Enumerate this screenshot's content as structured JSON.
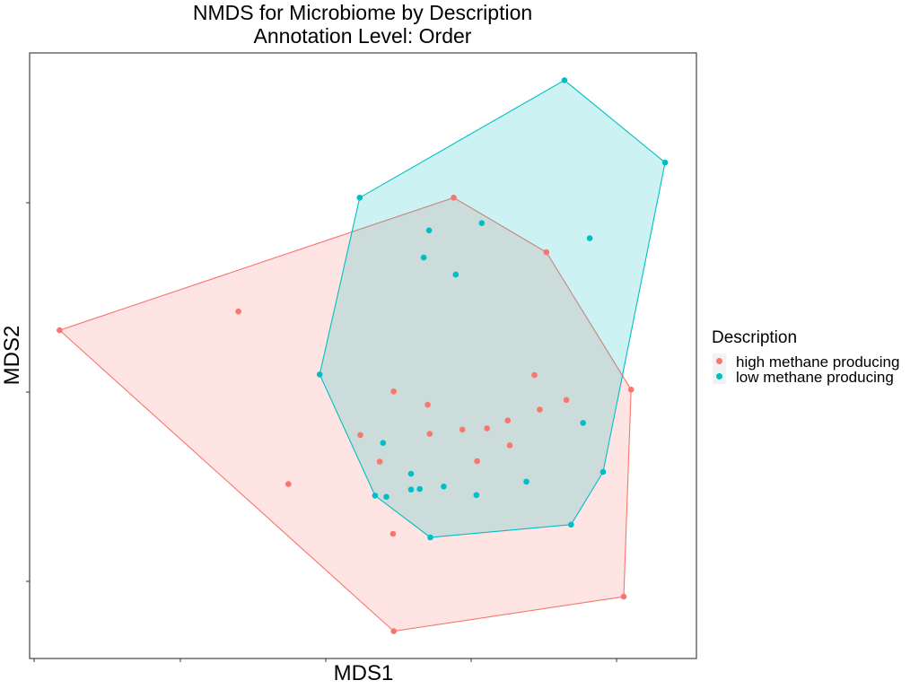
{
  "chart_data": {
    "type": "scatter",
    "title": "NMDS for Microbiome by Description",
    "subtitle": "Annotation Level: Order",
    "xlabel": "MDS1",
    "ylabel": "MDS2",
    "xlim": [
      0,
      1
    ],
    "ylim": [
      0,
      1
    ],
    "grid": false,
    "hull_fill_opacity": 0.2,
    "legend": {
      "title": "Description",
      "position": "right"
    },
    "series": [
      {
        "name": "high methane producing",
        "color": "#F8766D",
        "points": [
          [
            0.045,
            0.542
          ],
          [
            0.313,
            0.573
          ],
          [
            0.388,
            0.288
          ],
          [
            0.546,
            0.045
          ],
          [
            0.891,
            0.102
          ],
          [
            0.902,
            0.444
          ],
          [
            0.775,
            0.671
          ],
          [
            0.636,
            0.761
          ],
          [
            0.546,
            0.441
          ],
          [
            0.597,
            0.419
          ],
          [
            0.6,
            0.371
          ],
          [
            0.649,
            0.378
          ],
          [
            0.686,
            0.38
          ],
          [
            0.72,
            0.352
          ],
          [
            0.717,
            0.393
          ],
          [
            0.765,
            0.411
          ],
          [
            0.757,
            0.468
          ],
          [
            0.805,
            0.427
          ],
          [
            0.496,
            0.369
          ],
          [
            0.525,
            0.325
          ],
          [
            0.671,
            0.326
          ],
          [
            0.545,
            0.206
          ]
        ]
      },
      {
        "name": "low methane producing",
        "color": "#00BFC4",
        "points": [
          [
            0.802,
            0.955
          ],
          [
            0.953,
            0.819
          ],
          [
            0.495,
            0.761
          ],
          [
            0.678,
            0.719
          ],
          [
            0.599,
            0.707
          ],
          [
            0.84,
            0.694
          ],
          [
            0.591,
            0.662
          ],
          [
            0.639,
            0.634
          ],
          [
            0.435,
            0.469
          ],
          [
            0.53,
            0.356
          ],
          [
            0.572,
            0.305
          ],
          [
            0.621,
            0.284
          ],
          [
            0.585,
            0.28
          ],
          [
            0.745,
            0.292
          ],
          [
            0.86,
            0.308
          ],
          [
            0.83,
            0.389
          ],
          [
            0.535,
            0.267
          ],
          [
            0.572,
            0.279
          ],
          [
            0.518,
            0.269
          ],
          [
            0.601,
            0.2
          ],
          [
            0.67,
            0.27
          ],
          [
            0.812,
            0.221
          ]
        ]
      }
    ]
  }
}
